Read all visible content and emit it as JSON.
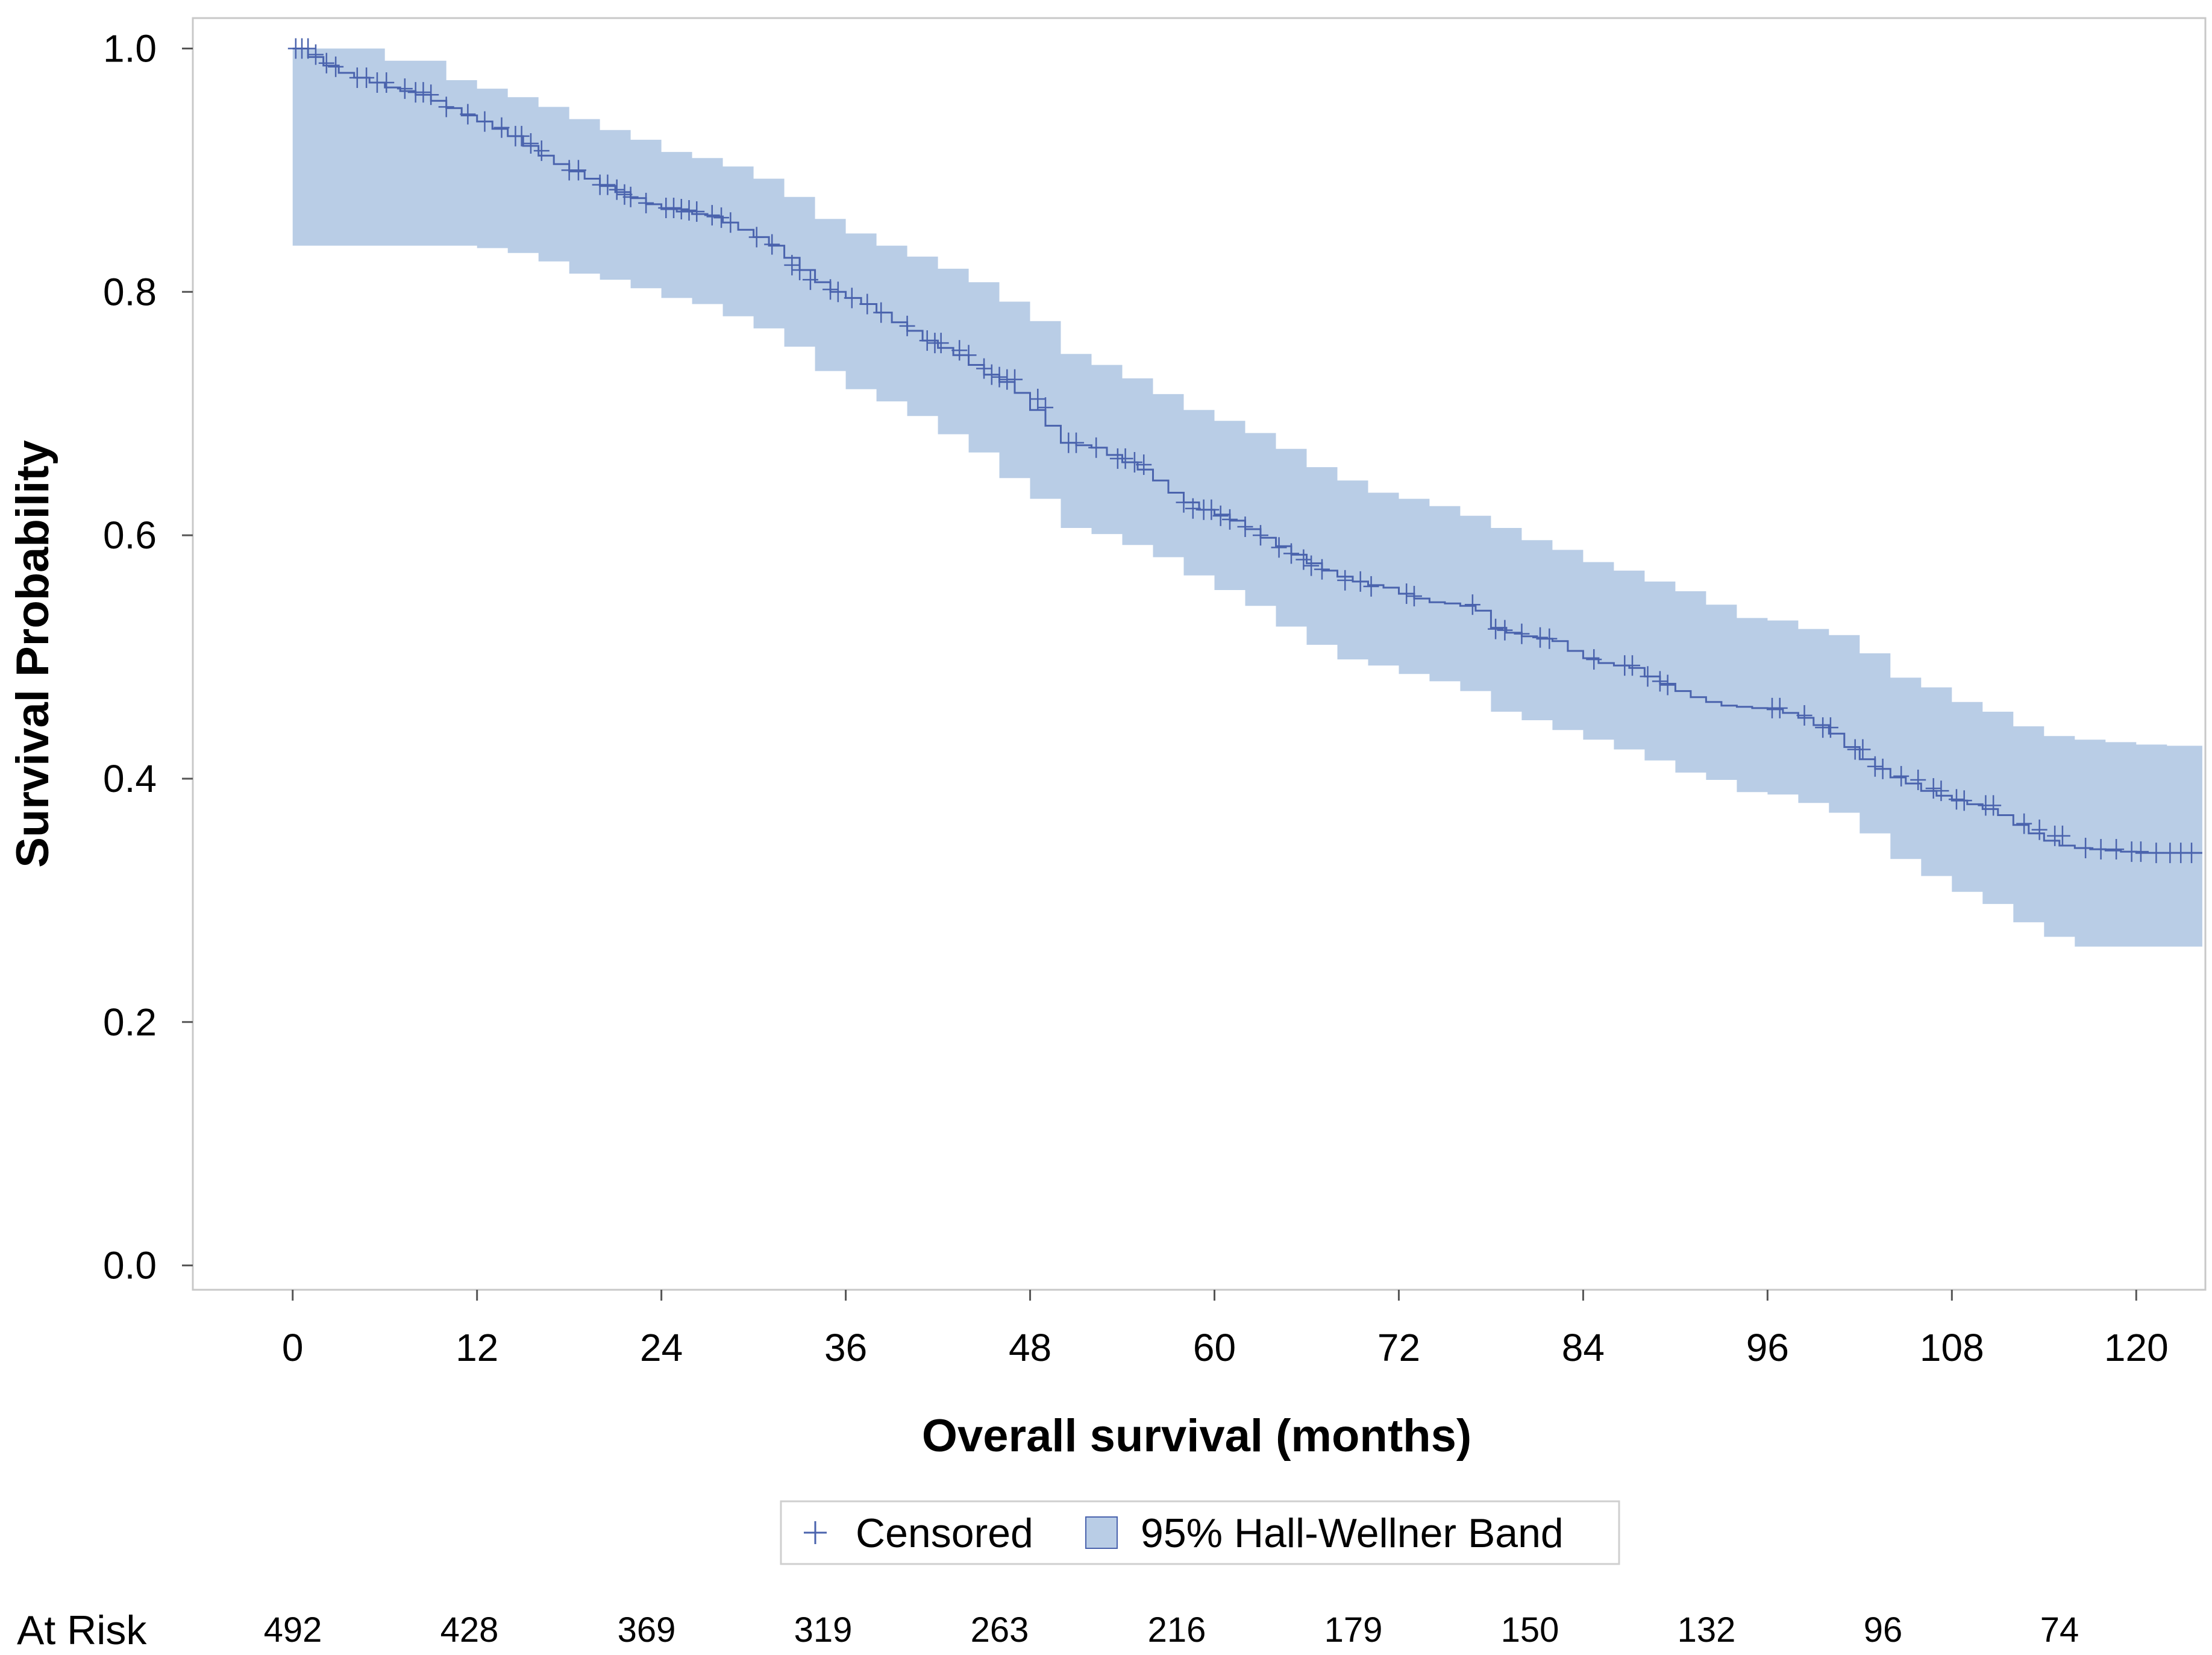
{
  "chart_data": {
    "type": "line",
    "subtype": "kaplan-meier survival curve",
    "xlabel": "Overall survival (months)",
    "ylabel": "Survival Probability",
    "xlim": [
      -6.5,
      124.5
    ],
    "ylim": [
      -0.02,
      1.025
    ],
    "x_ticks": [
      0,
      12,
      24,
      36,
      48,
      60,
      72,
      84,
      96,
      108,
      120
    ],
    "y_ticks": [
      0.0,
      0.2,
      0.4,
      0.6,
      0.8,
      1.0
    ],
    "y_tick_labels": [
      "0.0",
      "0.2",
      "0.4",
      "0.6",
      "0.8",
      "1.0"
    ],
    "grid": false,
    "legend_position": "bottom-center",
    "colors": {
      "survival_line": "#4a63ad",
      "band_fill": "#b9cde6",
      "censor_mark": "#4a63ad",
      "frame": "#c8c8c8"
    },
    "legend": [
      {
        "label": "Censored",
        "symbol": "plus",
        "color": "#4a63ad"
      },
      {
        "label": "95% Hall-Wellner Band",
        "symbol": "square",
        "color": "#b9cde6"
      }
    ],
    "survival_curve": [
      [
        0,
        1.0
      ],
      [
        1,
        0.993
      ],
      [
        2,
        0.986
      ],
      [
        3,
        0.98
      ],
      [
        4,
        0.976
      ],
      [
        5,
        0.972
      ],
      [
        6,
        0.968
      ],
      [
        7,
        0.965
      ],
      [
        8,
        0.962
      ],
      [
        9,
        0.957
      ],
      [
        10,
        0.951
      ],
      [
        11,
        0.945
      ],
      [
        12,
        0.94
      ],
      [
        13,
        0.934
      ],
      [
        14,
        0.928
      ],
      [
        15,
        0.92
      ],
      [
        16,
        0.912
      ],
      [
        17,
        0.905
      ],
      [
        18,
        0.899
      ],
      [
        19,
        0.893
      ],
      [
        20,
        0.887
      ],
      [
        21,
        0.882
      ],
      [
        22,
        0.877
      ],
      [
        23,
        0.872
      ],
      [
        24,
        0.868
      ],
      [
        25,
        0.866
      ],
      [
        26,
        0.864
      ],
      [
        27,
        0.862
      ],
      [
        28,
        0.857
      ],
      [
        29,
        0.851
      ],
      [
        30,
        0.845
      ],
      [
        31,
        0.838
      ],
      [
        32,
        0.828
      ],
      [
        33,
        0.818
      ],
      [
        34,
        0.808
      ],
      [
        35,
        0.8
      ],
      [
        36,
        0.795
      ],
      [
        37,
        0.79
      ],
      [
        38,
        0.783
      ],
      [
        39,
        0.775
      ],
      [
        40,
        0.768
      ],
      [
        41,
        0.76
      ],
      [
        42,
        0.754
      ],
      [
        43,
        0.748
      ],
      [
        44,
        0.74
      ],
      [
        45,
        0.732
      ],
      [
        46,
        0.726
      ],
      [
        47,
        0.717
      ],
      [
        48,
        0.703
      ],
      [
        49,
        0.69
      ],
      [
        50,
        0.676
      ],
      [
        51,
        0.674
      ],
      [
        52,
        0.672
      ],
      [
        53,
        0.666
      ],
      [
        54,
        0.66
      ],
      [
        55,
        0.654
      ],
      [
        56,
        0.645
      ],
      [
        57,
        0.635
      ],
      [
        58,
        0.627
      ],
      [
        59,
        0.621
      ],
      [
        60,
        0.617
      ],
      [
        61,
        0.612
      ],
      [
        62,
        0.605
      ],
      [
        63,
        0.598
      ],
      [
        64,
        0.591
      ],
      [
        65,
        0.584
      ],
      [
        66,
        0.577
      ],
      [
        67,
        0.571
      ],
      [
        68,
        0.566
      ],
      [
        69,
        0.562
      ],
      [
        70,
        0.559
      ],
      [
        71,
        0.557
      ],
      [
        72,
        0.552
      ],
      [
        73,
        0.548
      ],
      [
        74,
        0.545
      ],
      [
        75,
        0.544
      ],
      [
        76,
        0.542
      ],
      [
        77,
        0.538
      ],
      [
        78,
        0.524
      ],
      [
        79,
        0.52
      ],
      [
        80,
        0.517
      ],
      [
        81,
        0.515
      ],
      [
        82,
        0.513
      ],
      [
        83,
        0.505
      ],
      [
        84,
        0.499
      ],
      [
        85,
        0.495
      ],
      [
        86,
        0.493
      ],
      [
        87,
        0.491
      ],
      [
        88,
        0.484
      ],
      [
        89,
        0.478
      ],
      [
        90,
        0.472
      ],
      [
        91,
        0.467
      ],
      [
        92,
        0.463
      ],
      [
        93,
        0.46
      ],
      [
        94,
        0.459
      ],
      [
        95,
        0.458
      ],
      [
        96,
        0.457
      ],
      [
        97,
        0.454
      ],
      [
        98,
        0.45
      ],
      [
        99,
        0.444
      ],
      [
        100,
        0.437
      ],
      [
        101,
        0.426
      ],
      [
        102,
        0.416
      ],
      [
        103,
        0.408
      ],
      [
        104,
        0.401
      ],
      [
        105,
        0.396
      ],
      [
        106,
        0.39
      ],
      [
        107,
        0.386
      ],
      [
        108,
        0.382
      ],
      [
        109,
        0.379
      ],
      [
        110,
        0.375
      ],
      [
        111,
        0.37
      ],
      [
        112,
        0.362
      ],
      [
        113,
        0.355
      ],
      [
        114,
        0.349
      ],
      [
        115,
        0.345
      ],
      [
        116,
        0.343
      ],
      [
        117,
        0.342
      ],
      [
        118,
        0.341
      ],
      [
        119,
        0.34
      ],
      [
        120,
        0.339
      ],
      [
        121,
        0.339
      ],
      [
        122,
        0.339
      ],
      [
        123,
        0.339
      ],
      [
        124.3,
        0.339
      ]
    ],
    "band_upper": [
      [
        0,
        1.0
      ],
      [
        6,
        0.99
      ],
      [
        10,
        0.974
      ],
      [
        12,
        0.967
      ],
      [
        14,
        0.96
      ],
      [
        16,
        0.952
      ],
      [
        18,
        0.942
      ],
      [
        20,
        0.933
      ],
      [
        22,
        0.925
      ],
      [
        24,
        0.915
      ],
      [
        26,
        0.91
      ],
      [
        28,
        0.903
      ],
      [
        30,
        0.893
      ],
      [
        32,
        0.878
      ],
      [
        34,
        0.86
      ],
      [
        36,
        0.848
      ],
      [
        38,
        0.838
      ],
      [
        40,
        0.829
      ],
      [
        42,
        0.819
      ],
      [
        44,
        0.808
      ],
      [
        46,
        0.792
      ],
      [
        48,
        0.776
      ],
      [
        50,
        0.749
      ],
      [
        52,
        0.74
      ],
      [
        54,
        0.729
      ],
      [
        56,
        0.716
      ],
      [
        58,
        0.703
      ],
      [
        60,
        0.694
      ],
      [
        62,
        0.684
      ],
      [
        64,
        0.671
      ],
      [
        66,
        0.656
      ],
      [
        68,
        0.645
      ],
      [
        70,
        0.635
      ],
      [
        72,
        0.63
      ],
      [
        74,
        0.624
      ],
      [
        76,
        0.616
      ],
      [
        78,
        0.606
      ],
      [
        80,
        0.596
      ],
      [
        82,
        0.588
      ],
      [
        84,
        0.578
      ],
      [
        86,
        0.571
      ],
      [
        88,
        0.562
      ],
      [
        90,
        0.554
      ],
      [
        92,
        0.543
      ],
      [
        94,
        0.532
      ],
      [
        96,
        0.53
      ],
      [
        98,
        0.523
      ],
      [
        100,
        0.518
      ],
      [
        102,
        0.503
      ],
      [
        104,
        0.483
      ],
      [
        106,
        0.475
      ],
      [
        108,
        0.463
      ],
      [
        110,
        0.455
      ],
      [
        112,
        0.443
      ],
      [
        114,
        0.435
      ],
      [
        116,
        0.432
      ],
      [
        118,
        0.43
      ],
      [
        120,
        0.428
      ],
      [
        122,
        0.427
      ],
      [
        124.3,
        0.427
      ]
    ],
    "band_lower": [
      [
        0,
        0.838
      ],
      [
        2,
        0.838
      ],
      [
        6,
        0.838
      ],
      [
        10,
        0.838
      ],
      [
        12,
        0.836
      ],
      [
        14,
        0.832
      ],
      [
        16,
        0.825
      ],
      [
        18,
        0.815
      ],
      [
        20,
        0.81
      ],
      [
        22,
        0.803
      ],
      [
        24,
        0.795
      ],
      [
        26,
        0.79
      ],
      [
        28,
        0.78
      ],
      [
        30,
        0.77
      ],
      [
        32,
        0.755
      ],
      [
        34,
        0.735
      ],
      [
        36,
        0.72
      ],
      [
        38,
        0.71
      ],
      [
        40,
        0.698
      ],
      [
        42,
        0.683
      ],
      [
        44,
        0.668
      ],
      [
        46,
        0.647
      ],
      [
        48,
        0.63
      ],
      [
        50,
        0.606
      ],
      [
        52,
        0.601
      ],
      [
        54,
        0.592
      ],
      [
        56,
        0.582
      ],
      [
        58,
        0.567
      ],
      [
        60,
        0.555
      ],
      [
        62,
        0.542
      ],
      [
        64,
        0.525
      ],
      [
        66,
        0.51
      ],
      [
        68,
        0.498
      ],
      [
        70,
        0.493
      ],
      [
        72,
        0.486
      ],
      [
        74,
        0.48
      ],
      [
        76,
        0.472
      ],
      [
        78,
        0.455
      ],
      [
        80,
        0.448
      ],
      [
        82,
        0.44
      ],
      [
        84,
        0.432
      ],
      [
        86,
        0.424
      ],
      [
        88,
        0.415
      ],
      [
        90,
        0.405
      ],
      [
        92,
        0.399
      ],
      [
        94,
        0.389
      ],
      [
        96,
        0.387
      ],
      [
        98,
        0.38
      ],
      [
        100,
        0.372
      ],
      [
        102,
        0.355
      ],
      [
        104,
        0.334
      ],
      [
        106,
        0.32
      ],
      [
        108,
        0.307
      ],
      [
        110,
        0.297
      ],
      [
        112,
        0.282
      ],
      [
        114,
        0.27
      ],
      [
        116,
        0.262
      ],
      [
        118,
        0.262
      ],
      [
        120,
        0.262
      ],
      [
        122,
        0.262
      ],
      [
        124.3,
        0.255
      ]
    ],
    "censored": [
      [
        0.2,
        1.0
      ],
      [
        0.6,
        1.0
      ],
      [
        1.0,
        1.0
      ],
      [
        1.5,
        0.995
      ],
      [
        2.2,
        0.988
      ],
      [
        2.8,
        0.985
      ],
      [
        4.2,
        0.976
      ],
      [
        4.8,
        0.976
      ],
      [
        5.5,
        0.972
      ],
      [
        6.1,
        0.972
      ],
      [
        7.3,
        0.967
      ],
      [
        8.0,
        0.964
      ],
      [
        8.5,
        0.964
      ],
      [
        9.0,
        0.962
      ],
      [
        10.0,
        0.952
      ],
      [
        11.4,
        0.946
      ],
      [
        12.5,
        0.94
      ],
      [
        13.6,
        0.935
      ],
      [
        14.5,
        0.928
      ],
      [
        14.9,
        0.928
      ],
      [
        15.5,
        0.922
      ],
      [
        16.2,
        0.916
      ],
      [
        18.0,
        0.9
      ],
      [
        18.6,
        0.9
      ],
      [
        20.0,
        0.888
      ],
      [
        20.5,
        0.888
      ],
      [
        21.1,
        0.884
      ],
      [
        21.6,
        0.88
      ],
      [
        22.0,
        0.878
      ],
      [
        23.0,
        0.873
      ],
      [
        24.3,
        0.869
      ],
      [
        24.8,
        0.869
      ],
      [
        25.3,
        0.868
      ],
      [
        25.8,
        0.867
      ],
      [
        26.3,
        0.866
      ],
      [
        27.3,
        0.863
      ],
      [
        27.9,
        0.861
      ],
      [
        28.5,
        0.857
      ],
      [
        30.2,
        0.845
      ],
      [
        31.2,
        0.839
      ],
      [
        32.5,
        0.822
      ],
      [
        33.0,
        0.818
      ],
      [
        33.7,
        0.81
      ],
      [
        35.0,
        0.802
      ],
      [
        35.5,
        0.8
      ],
      [
        36.4,
        0.795
      ],
      [
        37.4,
        0.79
      ],
      [
        38.3,
        0.783
      ],
      [
        40.0,
        0.772
      ],
      [
        41.3,
        0.76
      ],
      [
        41.8,
        0.758
      ],
      [
        42.2,
        0.758
      ],
      [
        43.4,
        0.752
      ],
      [
        44.0,
        0.748
      ],
      [
        45.0,
        0.737
      ],
      [
        45.5,
        0.732
      ],
      [
        46.0,
        0.73
      ],
      [
        46.5,
        0.728
      ],
      [
        47.0,
        0.728
      ],
      [
        48.5,
        0.712
      ],
      [
        49.0,
        0.705
      ],
      [
        50.5,
        0.676
      ],
      [
        51.0,
        0.676
      ],
      [
        52.3,
        0.672
      ],
      [
        53.7,
        0.663
      ],
      [
        54.2,
        0.663
      ],
      [
        54.8,
        0.66
      ],
      [
        55.4,
        0.658
      ],
      [
        58.0,
        0.627
      ],
      [
        58.6,
        0.622
      ],
      [
        59.3,
        0.621
      ],
      [
        59.8,
        0.621
      ],
      [
        60.4,
        0.616
      ],
      [
        61.0,
        0.613
      ],
      [
        62.0,
        0.607
      ],
      [
        63.0,
        0.6
      ],
      [
        64.2,
        0.59
      ],
      [
        65.0,
        0.585
      ],
      [
        65.8,
        0.58
      ],
      [
        66.3,
        0.575
      ],
      [
        67.0,
        0.572
      ],
      [
        68.5,
        0.563
      ],
      [
        69.5,
        0.562
      ],
      [
        70.2,
        0.558
      ],
      [
        72.5,
        0.552
      ],
      [
        73.0,
        0.55
      ],
      [
        76.8,
        0.543
      ],
      [
        78.3,
        0.523
      ],
      [
        78.9,
        0.522
      ],
      [
        80.0,
        0.519
      ],
      [
        81.2,
        0.516
      ],
      [
        81.8,
        0.515
      ],
      [
        84.7,
        0.498
      ],
      [
        86.7,
        0.493
      ],
      [
        87.2,
        0.493
      ],
      [
        88.2,
        0.484
      ],
      [
        89.0,
        0.48
      ],
      [
        89.5,
        0.477
      ],
      [
        96.3,
        0.458
      ],
      [
        96.8,
        0.458
      ],
      [
        98.4,
        0.452
      ],
      [
        99.6,
        0.442
      ],
      [
        100.1,
        0.442
      ],
      [
        101.7,
        0.424
      ],
      [
        102.2,
        0.424
      ],
      [
        103.0,
        0.41
      ],
      [
        103.5,
        0.408
      ],
      [
        104.7,
        0.402
      ],
      [
        105.8,
        0.399
      ],
      [
        106.8,
        0.392
      ],
      [
        107.3,
        0.39
      ],
      [
        108.3,
        0.383
      ],
      [
        108.8,
        0.382
      ],
      [
        110.2,
        0.378
      ],
      [
        110.7,
        0.378
      ],
      [
        112.7,
        0.363
      ],
      [
        113.7,
        0.358
      ],
      [
        114.7,
        0.353
      ],
      [
        115.2,
        0.353
      ],
      [
        116.7,
        0.343
      ],
      [
        117.7,
        0.342
      ],
      [
        118.7,
        0.342
      ],
      [
        119.7,
        0.34
      ],
      [
        120.3,
        0.34
      ],
      [
        121.3,
        0.339
      ],
      [
        122.2,
        0.339
      ],
      [
        122.9,
        0.339
      ],
      [
        123.6,
        0.339
      ]
    ],
    "at_risk": {
      "label": "At Risk",
      "times": [
        0,
        12,
        24,
        36,
        48,
        60,
        72,
        84,
        96,
        108,
        120
      ],
      "counts": [
        "492",
        "428",
        "369",
        "319",
        "263",
        "216",
        "179",
        "150",
        "132",
        "96",
        "74"
      ]
    }
  }
}
